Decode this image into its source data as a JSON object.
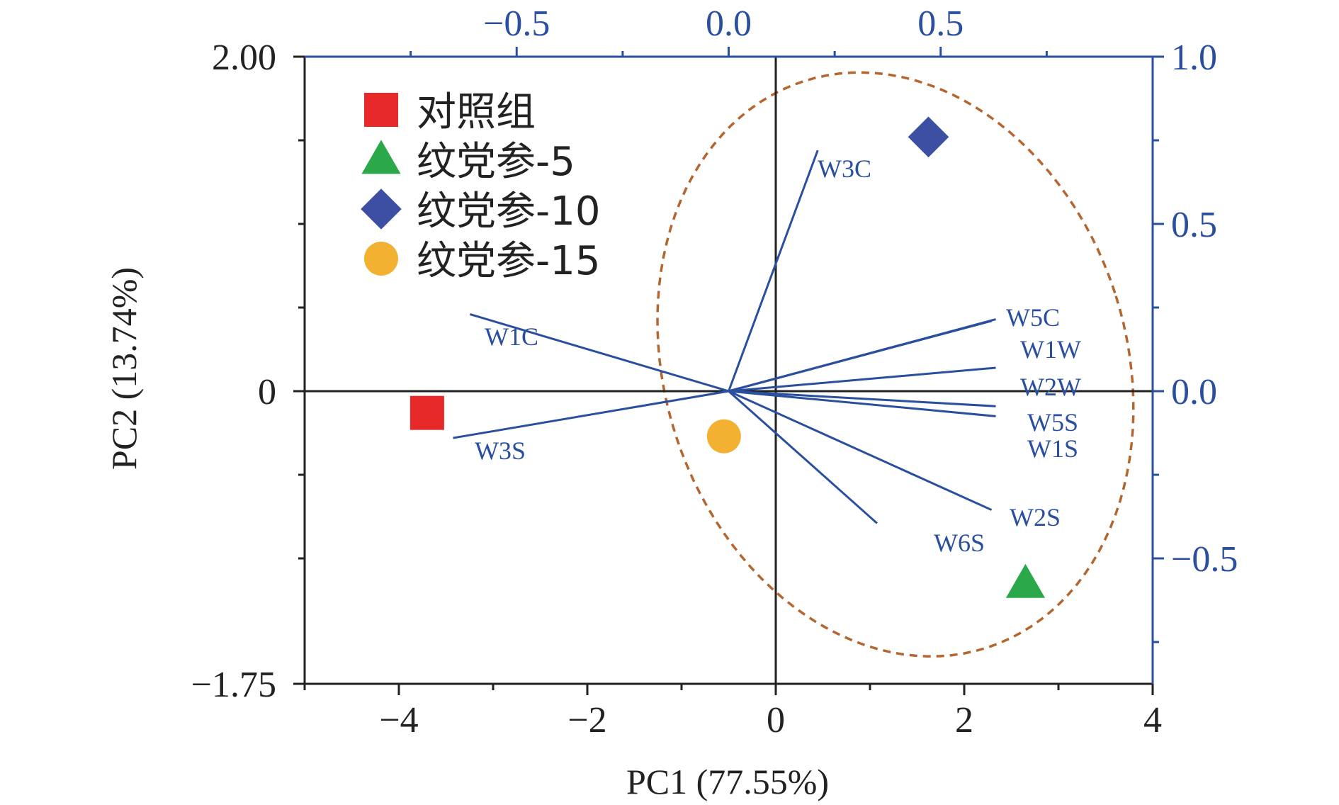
{
  "chart_data": {
    "type": "biplot",
    "xlabel": "PC1 (77.55%)",
    "ylabel": "PC2 (13.74%)",
    "xlim": [
      -5,
      4
    ],
    "ylim": [
      -1.75,
      2.0
    ],
    "x_ticks": [
      {
        "value": -4,
        "label": "−4"
      },
      {
        "value": -2,
        "label": "−2"
      },
      {
        "value": 0,
        "label": "0"
      },
      {
        "value": 2,
        "label": "2"
      },
      {
        "value": 4,
        "label": "4"
      }
    ],
    "x_minor_ticks": [
      -5,
      -3,
      -1,
      1,
      3
    ],
    "y_ticks": [
      {
        "value": 2.0,
        "label": "2.00"
      },
      {
        "value": 0,
        "label": "0"
      },
      {
        "value": -1.75,
        "label": "−1.75"
      }
    ],
    "y_minor_ticks": [
      1.5,
      1.0,
      0.5,
      -0.5,
      -1.0
    ],
    "top_axis": {
      "lim": [
        -1.0,
        1.0
      ],
      "ticks": [
        {
          "value": -0.5,
          "label": "−0.5"
        },
        {
          "value": 0.0,
          "label": "0.0"
        },
        {
          "value": 0.5,
          "label": "0.5"
        }
      ],
      "minor_ticks": [
        -0.75,
        -0.25,
        0.25,
        0.75
      ]
    },
    "right_axis": {
      "lim": [
        -0.875,
        1.0
      ],
      "ticks": [
        {
          "value": 1.0,
          "label": "1.0"
        },
        {
          "value": 0.5,
          "label": "0.5"
        },
        {
          "value": 0.0,
          "label": "0.0"
        },
        {
          "value": -0.5,
          "label": "−0.5"
        }
      ],
      "minor_ticks": [
        0.75,
        0.25,
        -0.25,
        -0.75
      ]
    },
    "samples": [
      {
        "name": "对照组",
        "x": -3.7,
        "y": -0.13,
        "marker": "square",
        "color": "#e8292a"
      },
      {
        "name": "纹党参-5",
        "x": 2.65,
        "y": -1.15,
        "marker": "triangle",
        "color": "#2aa84a"
      },
      {
        "name": "纹党参-10",
        "x": 1.62,
        "y": 1.52,
        "marker": "diamond",
        "color": "#3c4fa3"
      },
      {
        "name": "纹党参-15",
        "x": -0.55,
        "y": -0.27,
        "marker": "circle",
        "color": "#f2b130"
      }
    ],
    "loadings": [
      {
        "name": "W3C",
        "x": 0.21,
        "y": 0.72
      },
      {
        "name": "W1C",
        "x": -0.61,
        "y": 0.23
      },
      {
        "name": "W3S",
        "x": -0.65,
        "y": -0.14
      },
      {
        "name": "W5C",
        "x": 0.62,
        "y": 0.21
      },
      {
        "name": "W1W",
        "x": 0.63,
        "y": 0.215
      },
      {
        "name": "W2W",
        "x": 0.63,
        "y": 0.07
      },
      {
        "name": "W5S",
        "x": 0.63,
        "y": -0.045
      },
      {
        "name": "W1S",
        "x": 0.63,
        "y": -0.075
      },
      {
        "name": "W2S",
        "x": 0.62,
        "y": -0.355
      },
      {
        "name": "W6S",
        "x": 0.35,
        "y": -0.395
      }
    ],
    "ellipse": {
      "cx": 1.27,
      "cy": 0.16,
      "rx": 2.45,
      "ry": 1.78,
      "rotation_deg": -18
    },
    "colors": {
      "loading": "#2a4f9e",
      "axis_secondary": "#2a4f9e",
      "ellipse": "#b5652f",
      "axis": "#222222"
    }
  }
}
